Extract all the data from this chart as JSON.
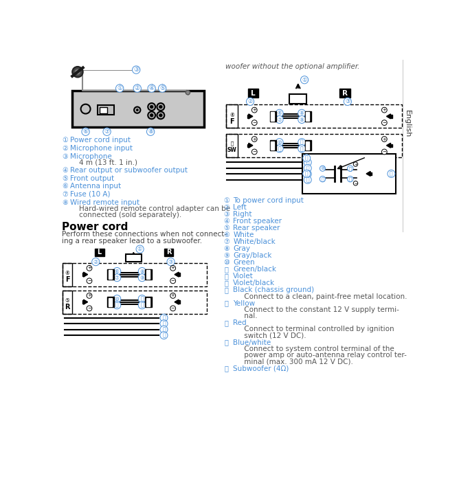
{
  "bg_color": "#ffffff",
  "blue": "#4a90d9",
  "dark": "#555555",
  "black": "#000000",
  "top_text": "woofer without the optional amplifier.",
  "english_label": "English",
  "power_cord_title": "Power cord",
  "power_cord_desc1": "Perform these connections when not connect-",
  "power_cord_desc2": "ing a rear speaker lead to a subwoofer.",
  "left_items": [
    [
      "①",
      "Power cord input",
      []
    ],
    [
      "②",
      "Microphone input",
      []
    ],
    [
      "③",
      "Microphone",
      [
        "    4 m (13 ft. 1 in.)"
      ]
    ],
    [
      "④",
      "Rear output or subwoofer output",
      []
    ],
    [
      "⑤",
      "Front output",
      []
    ],
    [
      "⑥",
      "Antenna input",
      []
    ],
    [
      "⑦",
      "Fuse (10 A)",
      []
    ],
    [
      "⑧",
      "Wired remote input",
      [
        "    Hard-wired remote control adapter can be",
        "    connected (sold separately)."
      ]
    ]
  ],
  "right_items": [
    [
      "①",
      "To power cord input",
      []
    ],
    [
      "②",
      "Left",
      []
    ],
    [
      "③",
      "Right",
      []
    ],
    [
      "④",
      "Front speaker",
      []
    ],
    [
      "⑤",
      "Rear speaker",
      []
    ],
    [
      "⑥",
      "White",
      []
    ],
    [
      "⑦",
      "White/black",
      []
    ],
    [
      "⑧",
      "Gray",
      []
    ],
    [
      "⑨",
      "Gray/black",
      []
    ],
    [
      "⑩",
      "Green",
      []
    ],
    [
      "⑪",
      "Green/black",
      []
    ],
    [
      "⑫",
      "Violet",
      []
    ],
    [
      "⑬",
      "Violet/black",
      []
    ],
    [
      "⑭",
      "Black (chassis ground)",
      [
        "     Connect to a clean, paint-free metal location."
      ]
    ],
    [
      "⑮",
      "Yellow",
      [
        "     Connect to the constant 12 V supply termi-",
        "     nal."
      ]
    ],
    [
      "⑯",
      "Red",
      [
        "     Connect to terminal controlled by ignition",
        "     switch (12 V DC)."
      ]
    ],
    [
      "⑰",
      "Blue/white",
      [
        "     Connect to system control terminal of the",
        "     power amp or auto-antenna relay control ter-",
        "     minal (max. 300 mA 12 V DC)."
      ]
    ],
    [
      "⑱",
      "Subwoofer (4Ω)",
      []
    ]
  ]
}
